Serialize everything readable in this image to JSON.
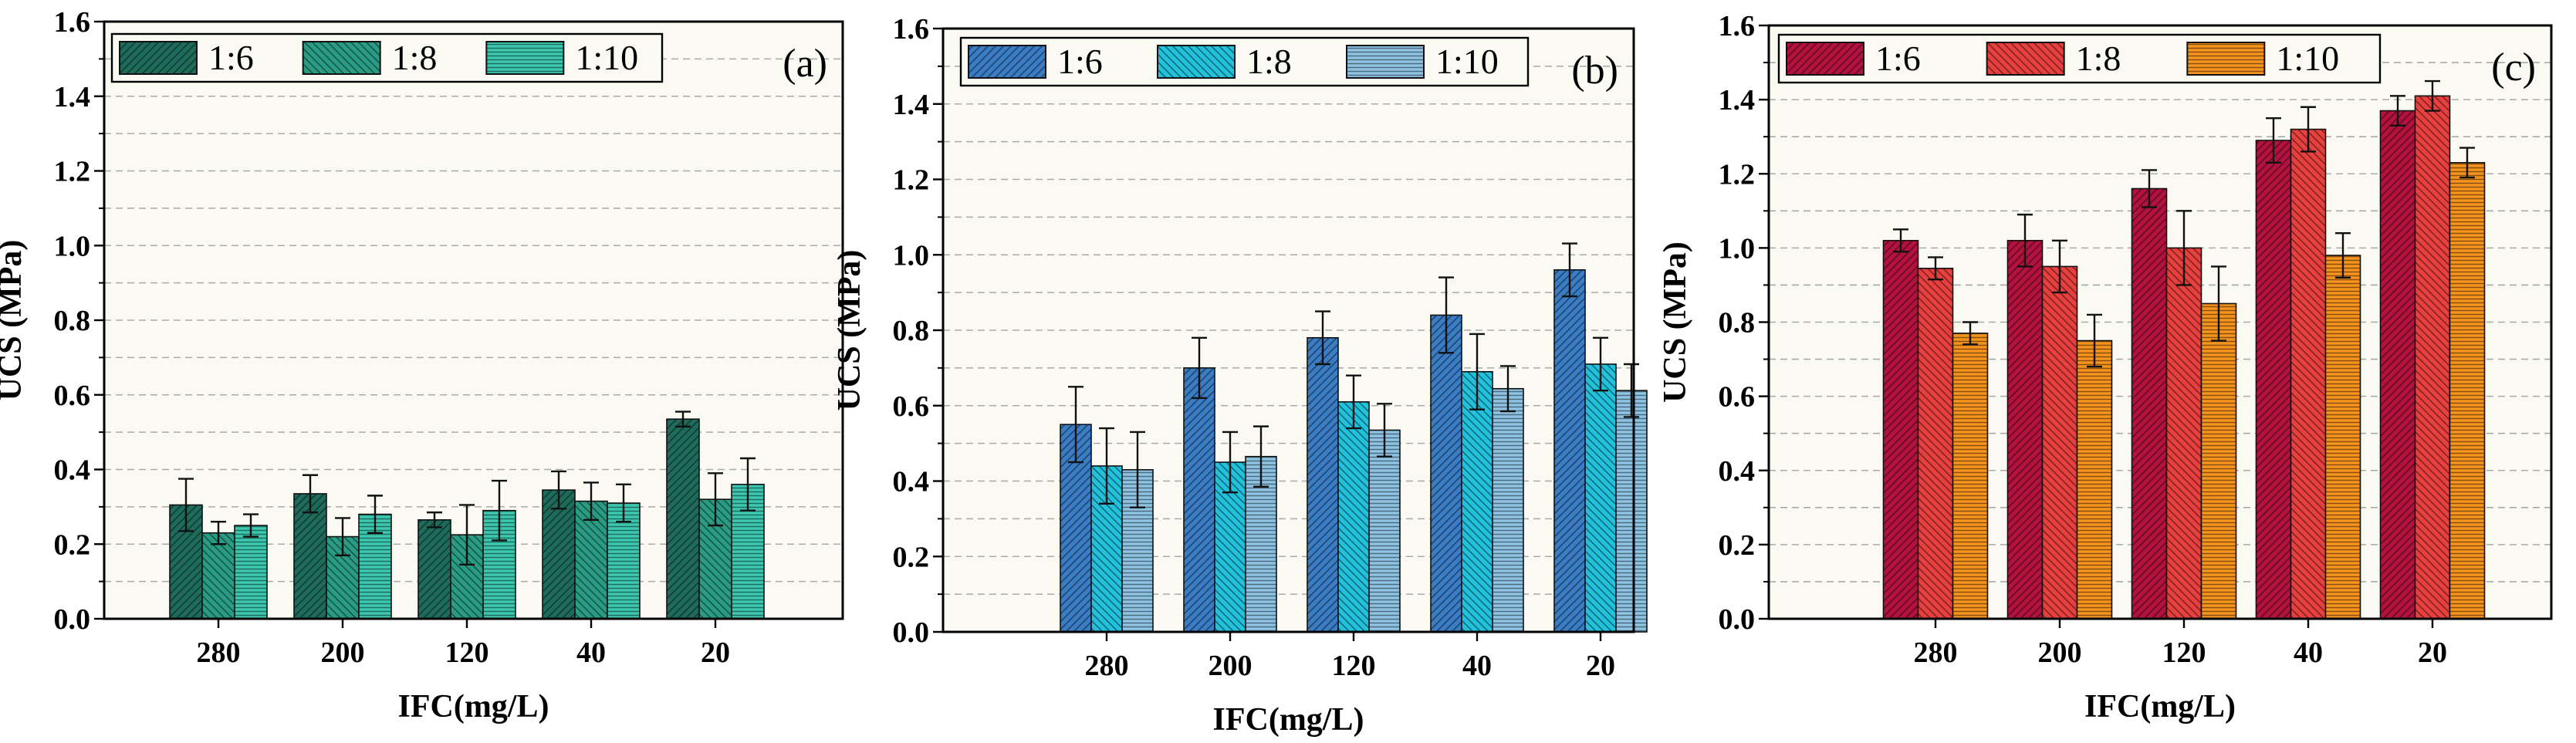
{
  "chart_data": [
    {
      "type": "bar",
      "panel_label": "(a)",
      "ylabel": "UCS (MPa)",
      "xlabel": "IFC(mg/L)",
      "categories": [
        "280",
        "200",
        "120",
        "40",
        "20"
      ],
      "ylim": [
        0,
        1.6
      ],
      "yticks": [
        0.0,
        0.2,
        0.4,
        0.6,
        0.8,
        1.0,
        1.2,
        1.4,
        1.6
      ],
      "ytick_labels": [
        "0.0",
        "0.2",
        "0.4",
        "0.6",
        "0.8",
        "1.0",
        "1.2",
        "1.4",
        "1.6"
      ],
      "grid": true,
      "legend_position": "top-left",
      "series": [
        {
          "name": "1:6",
          "values": [
            0.305,
            0.335,
            0.265,
            0.345,
            0.535
          ],
          "errors": [
            0.07,
            0.05,
            0.02,
            0.05,
            0.02
          ],
          "color": "#1e6b5b",
          "pattern": "diag-right"
        },
        {
          "name": "1:8",
          "values": [
            0.23,
            0.22,
            0.225,
            0.315,
            0.32
          ],
          "errors": [
            0.03,
            0.05,
            0.08,
            0.05,
            0.07
          ],
          "color": "#2a9c84",
          "pattern": "diag-left"
        },
        {
          "name": "1:10",
          "values": [
            0.25,
            0.28,
            0.29,
            0.31,
            0.36
          ],
          "errors": [
            0.03,
            0.05,
            0.08,
            0.05,
            0.07
          ],
          "color": "#3cc8b0",
          "pattern": "horizontal"
        }
      ]
    },
    {
      "type": "bar",
      "panel_label": "(b)",
      "ylabel": "UCS (MPa)",
      "xlabel": "IFC(mg/L)",
      "categories": [
        "280",
        "200",
        "120",
        "40",
        "20"
      ],
      "ylim": [
        0,
        1.6
      ],
      "yticks": [
        0.0,
        0.2,
        0.4,
        0.6,
        0.8,
        1.0,
        1.2,
        1.4,
        1.6
      ],
      "ytick_labels": [
        "0.0",
        "0.2",
        "0.4",
        "0.6",
        "0.8",
        "1.0",
        "1.2",
        "1.4",
        "1.6"
      ],
      "grid": true,
      "legend_position": "top-left",
      "series": [
        {
          "name": "1:6",
          "values": [
            0.55,
            0.7,
            0.78,
            0.84,
            0.96
          ],
          "errors": [
            0.1,
            0.08,
            0.07,
            0.1,
            0.07
          ],
          "color": "#3a7dc4",
          "pattern": "diag-right"
        },
        {
          "name": "1:8",
          "values": [
            0.44,
            0.45,
            0.61,
            0.69,
            0.71
          ],
          "errors": [
            0.1,
            0.08,
            0.07,
            0.1,
            0.07
          ],
          "color": "#22c1dc",
          "pattern": "diag-left"
        },
        {
          "name": "1:10",
          "values": [
            0.43,
            0.465,
            0.535,
            0.645,
            0.64
          ],
          "errors": [
            0.1,
            0.08,
            0.07,
            0.06,
            0.07
          ],
          "color": "#8ec4e3",
          "pattern": "horizontal"
        }
      ]
    },
    {
      "type": "bar",
      "panel_label": "(c)",
      "ylabel": "UCS (MPa)",
      "xlabel": "IFC(mg/L)",
      "categories": [
        "280",
        "200",
        "120",
        "40",
        "20"
      ],
      "ylim": [
        0,
        1.6
      ],
      "yticks": [
        0.0,
        0.2,
        0.4,
        0.6,
        0.8,
        1.0,
        1.2,
        1.4,
        1.6
      ],
      "ytick_labels": [
        "0.0",
        "0.2",
        "0.4",
        "0.6",
        "0.8",
        "1.0",
        "1.2",
        "1.4",
        "1.6"
      ],
      "grid": true,
      "legend_position": "top-left",
      "series": [
        {
          "name": "1:6",
          "values": [
            1.02,
            1.02,
            1.16,
            1.29,
            1.37
          ],
          "errors": [
            0.03,
            0.07,
            0.05,
            0.06,
            0.04
          ],
          "color": "#b3123e",
          "pattern": "diag-right"
        },
        {
          "name": "1:8",
          "values": [
            0.945,
            0.95,
            1.0,
            1.32,
            1.41
          ],
          "errors": [
            0.03,
            0.07,
            0.1,
            0.06,
            0.04
          ],
          "color": "#e8403f",
          "pattern": "diag-left"
        },
        {
          "name": "1:10",
          "values": [
            0.77,
            0.75,
            0.85,
            0.98,
            1.23
          ],
          "errors": [
            0.03,
            0.07,
            0.1,
            0.06,
            0.04
          ],
          "color": "#f7941d",
          "pattern": "horizontal"
        }
      ]
    }
  ]
}
